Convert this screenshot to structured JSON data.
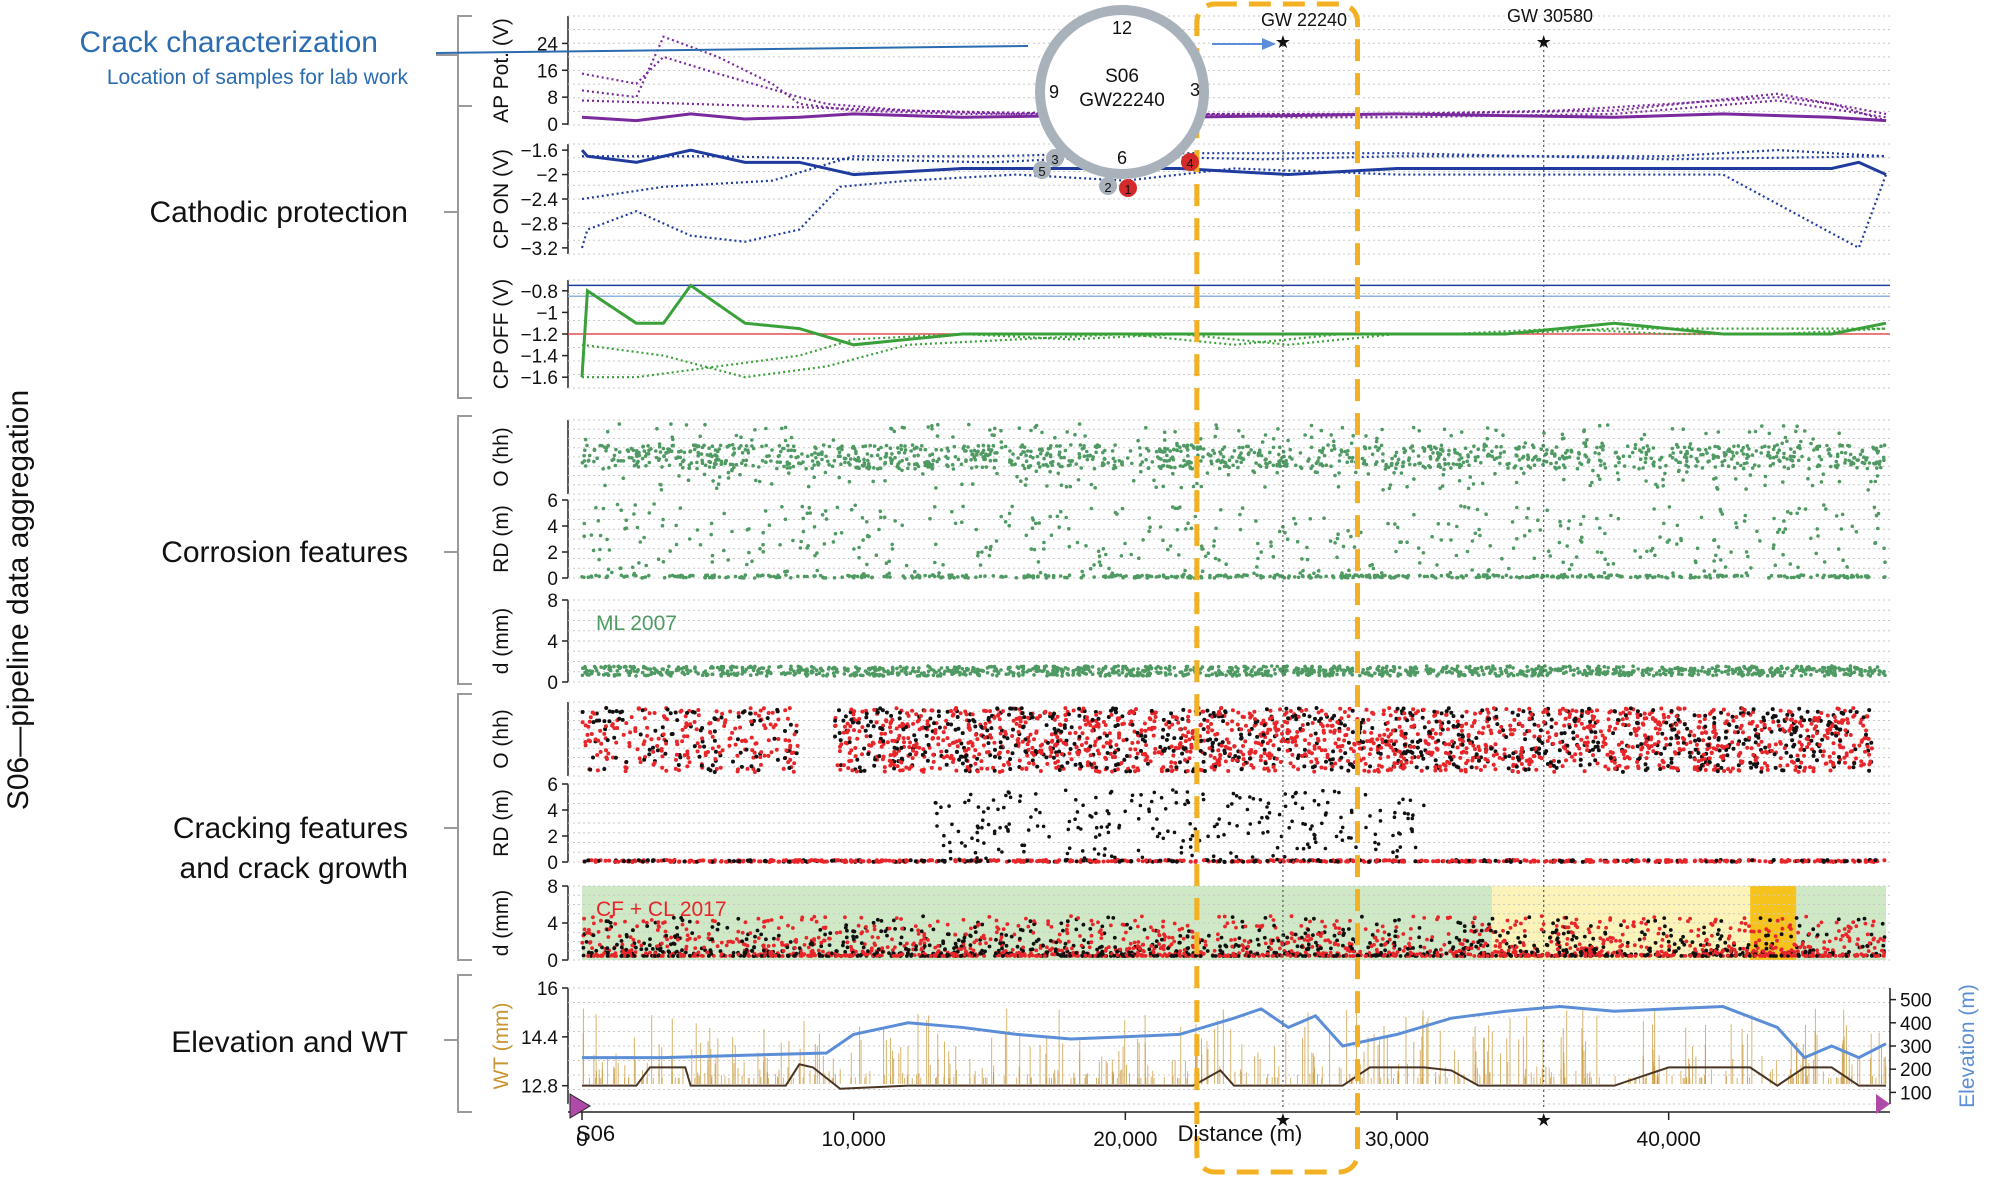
{
  "figure": {
    "side_title": "S06—pipeline data aggregation",
    "sections": [
      {
        "label_lines": [
          "Crack characterization"
        ],
        "sub": "Location of samples for lab work"
      },
      {
        "label_lines": [
          "Cathodic protection"
        ]
      },
      {
        "label_lines": [
          "Corrosion features"
        ]
      },
      {
        "label_lines": [
          "Cracking features",
          "and crack growth"
        ]
      },
      {
        "label_lines": [
          "Elevation and WT"
        ]
      }
    ],
    "markers": [
      {
        "label": "GW 22240",
        "distance": 25800
      },
      {
        "label": "GW 30580",
        "distance": 35400
      }
    ],
    "highlight_window": [
      23000,
      28400
    ],
    "x_axis": {
      "label": "Distance (m)",
      "min": 0,
      "max": 48000,
      "ticks": [
        0,
        10000,
        20000,
        30000,
        40000
      ],
      "tick_labels": [
        "0",
        "10,000",
        "20,000",
        "30,000",
        "40,000"
      ],
      "origin_label": "S06"
    },
    "inset": {
      "center_lines": [
        "S06",
        "GW22240"
      ],
      "clock_labels": [
        "12",
        "3",
        "6",
        "9"
      ],
      "samples": [
        {
          "label": "1",
          "color": "#d42a2a"
        },
        {
          "label": "2",
          "color": "#a9b2bb"
        },
        {
          "label": "3",
          "color": "#a9b2bb"
        },
        {
          "label": "4",
          "color": "#d42a2a"
        },
        {
          "label": "5",
          "color": "#a9b2bb"
        }
      ]
    },
    "colors": {
      "ap": "#7b2a9e",
      "cp_on": "#1f3b9e",
      "cp_off": "#3aa13a",
      "corrosion": "#4f9a62",
      "crack_red": "#e8262a",
      "crack_black": "#111111",
      "wt": "#c89532",
      "elevation": "#5b8ed6",
      "highlight": "#f3b022",
      "blue_label": "#2b6cb0"
    }
  },
  "chart_data": [
    {
      "type": "line",
      "title": "AP Pot",
      "ylabel": "AP Pot. (V)",
      "ylim": [
        0,
        28
      ],
      "yticks": [
        "0",
        "8",
        "16",
        "24"
      ],
      "series": [
        {
          "style": "solid",
          "x": [
            0,
            2000,
            4000,
            6000,
            8000,
            10000,
            14000,
            18000,
            22000,
            26000,
            30000,
            34000,
            38000,
            42000,
            46000,
            48000
          ],
          "values": [
            2,
            1,
            3,
            1.5,
            2,
            3,
            2,
            2.5,
            2,
            2.5,
            3,
            2.5,
            2,
            3,
            2,
            1
          ]
        },
        {
          "style": "dotted",
          "x": [
            0,
            2000,
            3000,
            5000,
            8000,
            9000,
            12000,
            16000,
            18000,
            22000,
            26000,
            30000,
            36000,
            44000,
            46000,
            48000
          ],
          "values": [
            15,
            12,
            20,
            15,
            8,
            6,
            4,
            3,
            4,
            3,
            3,
            3,
            4,
            8,
            6,
            1
          ]
        },
        {
          "style": "dotted",
          "x": [
            0,
            2000,
            3000,
            5000,
            7000,
            8000,
            10000,
            14000,
            18000,
            22000,
            26000,
            30000,
            38000,
            44000,
            48000
          ],
          "values": [
            10,
            8,
            26,
            20,
            12,
            6,
            4,
            3,
            3,
            3,
            2,
            2,
            3,
            7,
            2
          ]
        },
        {
          "style": "dotted",
          "x": [
            0,
            4000,
            8000,
            12000,
            18000,
            22000,
            30000,
            38000,
            44000,
            48000
          ],
          "values": [
            7,
            6,
            5,
            4,
            3,
            3,
            3,
            4,
            9,
            3
          ]
        }
      ]
    },
    {
      "type": "line",
      "title": "CP ON",
      "ylabel": "CP ON (V)",
      "ylim": [
        -3.3,
        -1.5
      ],
      "yticks": [
        "−3.2",
        "−2.8",
        "−2.4",
        "−2",
        "−1.6"
      ],
      "series": [
        {
          "style": "solid",
          "x": [
            0,
            200,
            2000,
            4000,
            6000,
            8000,
            10000,
            14000,
            18000,
            22000,
            26000,
            30000,
            34000,
            38000,
            42000,
            46000,
            47000,
            48000
          ],
          "values": [
            -1.6,
            -1.7,
            -1.8,
            -1.6,
            -1.8,
            -1.8,
            -2.0,
            -1.9,
            -1.9,
            -1.9,
            -2.0,
            -1.9,
            -1.9,
            -1.9,
            -1.9,
            -1.9,
            -1.8,
            -2.0
          ]
        },
        {
          "style": "dotted",
          "x": [
            0,
            200,
            2000,
            4000,
            6000,
            8000,
            9500,
            12000,
            16000,
            20000,
            24000,
            30000,
            36000,
            42000,
            47000,
            48000
          ],
          "values": [
            -3.2,
            -2.9,
            -2.6,
            -3.0,
            -3.1,
            -2.9,
            -2.2,
            -2.1,
            -2.0,
            -2.1,
            -1.9,
            -2.0,
            -2.0,
            -2.0,
            -3.2,
            -2.0
          ]
        },
        {
          "style": "dotted",
          "x": [
            0,
            3000,
            7000,
            10000,
            15000,
            20000,
            25000,
            30000,
            35000,
            40000,
            44000,
            48000
          ],
          "values": [
            -2.4,
            -2.2,
            -2.1,
            -1.7,
            -1.7,
            -1.65,
            -1.65,
            -1.65,
            -1.7,
            -1.7,
            -1.6,
            -1.7
          ]
        },
        {
          "style": "dotted",
          "x": [
            0,
            5000,
            10000,
            15000,
            20000,
            25000,
            30000,
            35000,
            40000,
            48000
          ],
          "values": [
            -1.7,
            -1.7,
            -1.75,
            -1.8,
            -1.7,
            -1.75,
            -1.7,
            -1.7,
            -1.75,
            -1.7
          ]
        }
      ]
    },
    {
      "type": "line",
      "title": "CP OFF",
      "ylabel": "CP OFF (V)",
      "ylim": [
        -1.7,
        -0.7
      ],
      "yticks": [
        "−1.6",
        "−1.4",
        "−1.2",
        "−1",
        "−0.8"
      ],
      "reference_lines": [
        {
          "y": -1.2,
          "color": "#e05050"
        },
        {
          "y": -0.85,
          "color": "#8fb3e0"
        },
        {
          "y": -0.75,
          "color": "#1f3b9e"
        }
      ],
      "series": [
        {
          "style": "solid",
          "x": [
            0,
            200,
            2000,
            3000,
            4000,
            6000,
            8000,
            10000,
            14000,
            18000,
            22000,
            26000,
            30000,
            34000,
            38000,
            42000,
            46000,
            48000
          ],
          "values": [
            -1.6,
            -0.8,
            -1.1,
            -1.1,
            -0.75,
            -1.1,
            -1.15,
            -1.3,
            -1.2,
            -1.2,
            -1.2,
            -1.2,
            -1.2,
            -1.2,
            -1.1,
            -1.2,
            -1.2,
            -1.1
          ]
        },
        {
          "style": "dotted",
          "x": [
            0,
            2000,
            5000,
            8000,
            10000,
            14000,
            18000,
            22000,
            26000,
            30000,
            34000,
            38000,
            42000,
            48000
          ],
          "values": [
            -1.6,
            -1.6,
            -1.5,
            -1.4,
            -1.25,
            -1.2,
            -1.25,
            -1.2,
            -1.3,
            -1.2,
            -1.2,
            -1.15,
            -1.15,
            -1.15
          ]
        },
        {
          "style": "dotted",
          "x": [
            0,
            3000,
            6000,
            9000,
            12000,
            16000,
            20000,
            24000,
            28000,
            32000,
            36000,
            40000,
            44000,
            48000
          ],
          "values": [
            -1.3,
            -1.4,
            -1.6,
            -1.5,
            -1.3,
            -1.25,
            -1.2,
            -1.3,
            -1.2,
            -1.2,
            -1.15,
            -1.2,
            -1.2,
            -1.15
          ]
        }
      ]
    },
    {
      "type": "scatter",
      "title": "O (hh)",
      "ylabel": "O (hh)",
      "ylim": [
        0,
        12
      ],
      "density": "dense band mid-panel"
    },
    {
      "type": "scatter",
      "title": "RD (m) corrosion",
      "ylabel": "RD (m)",
      "ylim": [
        0,
        6
      ],
      "yticks": [
        "0",
        "2",
        "4",
        "6"
      ]
    },
    {
      "type": "scatter",
      "title": "ML 2007",
      "ylabel": "d (mm)",
      "ylim": [
        0,
        8
      ],
      "yticks": [
        "0",
        "4",
        "8"
      ],
      "annotation": "ML 2007"
    },
    {
      "type": "scatter",
      "title": "O (hh) cracking",
      "ylabel": "O (hh)",
      "ylim": [
        0,
        12
      ]
    },
    {
      "type": "scatter",
      "title": "RD (m) cracking",
      "ylabel": "RD (m)",
      "ylim": [
        0,
        6
      ],
      "yticks": [
        "0",
        "2",
        "4",
        "6"
      ]
    },
    {
      "type": "scatter",
      "title": "CF + CL 2017",
      "ylabel": "d (mm)",
      "ylim": [
        0,
        8
      ],
      "yticks": [
        "0",
        "4",
        "8"
      ],
      "annotation": "CF + CL 2017",
      "bands": [
        {
          "x0": 0,
          "x1": 33500,
          "color": "#cfe8c6"
        },
        {
          "x0": 33500,
          "x1": 43000,
          "color": "#fbf3b8"
        },
        {
          "x0": 43000,
          "x1": 44700,
          "color": "#f6c21c"
        },
        {
          "x0": 44700,
          "x1": 48000,
          "color": "#cfe8c6"
        }
      ]
    },
    {
      "type": "line",
      "title": "Elevation and WT",
      "ylabel": "WT (mm)",
      "ylim": [
        12.2,
        16
      ],
      "yticks": [
        "12.8",
        "14.4",
        "16"
      ],
      "y2label": "Elevation (m)",
      "y2lim": [
        50,
        550
      ],
      "y2ticks": [
        "100",
        "200",
        "300",
        "400",
        "500"
      ],
      "series": [
        {
          "name": "WT",
          "axis": "left",
          "x": [
            0,
            1000,
            2000,
            2500,
            3800,
            4000,
            7500,
            8000,
            8500,
            9500,
            12000,
            18000,
            22500,
            23500,
            24000,
            28000,
            29000,
            29500,
            31000,
            32000,
            33000,
            38000,
            40000,
            43000,
            44000,
            45000,
            46000,
            47000,
            48000
          ],
          "values": [
            12.8,
            12.8,
            12.8,
            13.4,
            13.4,
            12.8,
            12.8,
            13.5,
            13.4,
            12.7,
            12.8,
            12.8,
            12.8,
            13.3,
            12.8,
            12.8,
            13.4,
            13.4,
            13.4,
            13.3,
            12.8,
            12.8,
            13.4,
            13.4,
            12.8,
            13.4,
            13.4,
            12.8,
            12.8
          ]
        },
        {
          "name": "Elevation",
          "axis": "right",
          "x": [
            0,
            3000,
            6000,
            9000,
            10000,
            12000,
            14000,
            16000,
            18000,
            20000,
            22000,
            24000,
            25000,
            26000,
            27000,
            28000,
            30000,
            32000,
            34000,
            36000,
            38000,
            40000,
            42000,
            44000,
            45000,
            46000,
            47000,
            48000
          ],
          "values": [
            250,
            250,
            260,
            270,
            350,
            400,
            380,
            350,
            330,
            340,
            350,
            420,
            460,
            380,
            430,
            300,
            350,
            420,
            450,
            470,
            450,
            460,
            470,
            380,
            250,
            300,
            250,
            310
          ]
        }
      ]
    }
  ]
}
